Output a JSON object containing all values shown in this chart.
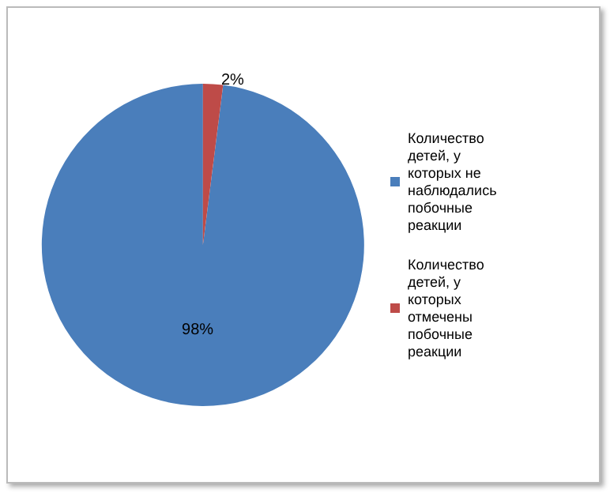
{
  "chart_data": {
    "type": "pie",
    "categories": [
      "Количество детей, у которых не наблюдались побочные реакции",
      "Количество детей, у которых отмечены побочные реакции"
    ],
    "values": [
      98,
      2
    ],
    "colors": [
      "#4a7ebb",
      "#be4b48"
    ],
    "value_labels": [
      "98%",
      "2%"
    ],
    "legend": "right"
  }
}
